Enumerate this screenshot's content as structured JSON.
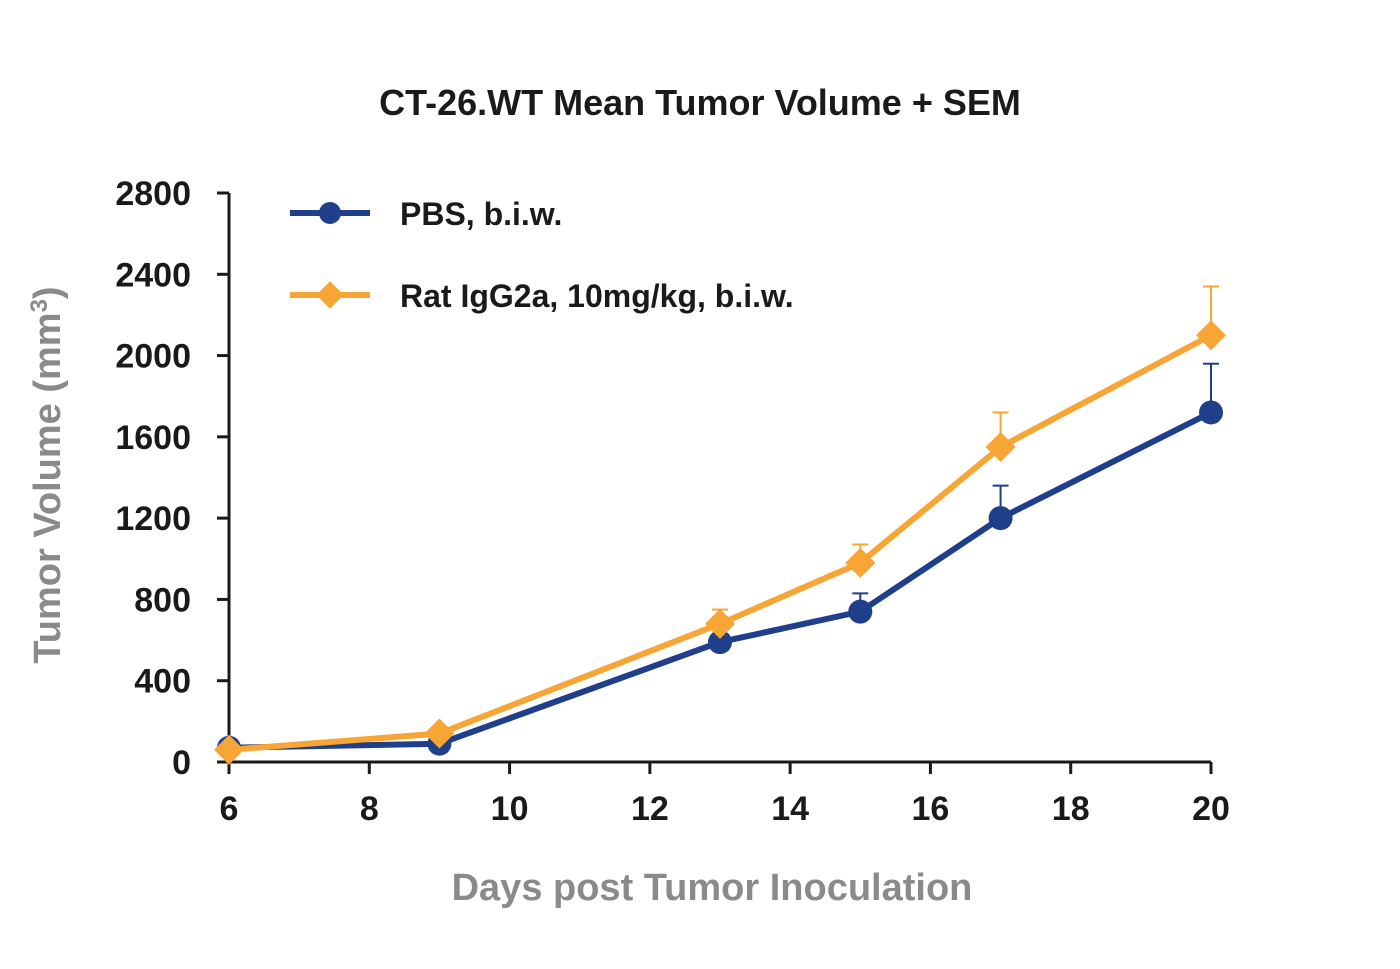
{
  "chart_data": {
    "type": "line",
    "title": "CT-26.WT Mean Tumor Volume + SEM",
    "xlabel": "Days post Tumor Inoculation",
    "ylabel": "Tumor Volume (mm",
    "ylabel_superscript": "3",
    "ylabel_close": ")",
    "xlim": [
      6,
      20
    ],
    "ylim": [
      0,
      2800
    ],
    "x_ticks": [
      "6",
      "8",
      "10",
      "12",
      "14",
      "16",
      "18",
      "20"
    ],
    "y_ticks": [
      "0",
      "400",
      "800",
      "1200",
      "1600",
      "2000",
      "2400",
      "2800"
    ],
    "grid": false,
    "legend_position": "top-left",
    "series": [
      {
        "name": "PBS, b.i.w.",
        "color": "#1f3f8a",
        "marker": "circle",
        "x": [
          6,
          9,
          13,
          15,
          17,
          20
        ],
        "y": [
          70,
          90,
          590,
          740,
          1200,
          1720
        ],
        "sem": [
          10,
          15,
          30,
          90,
          160,
          240
        ]
      },
      {
        "name": "Rat IgG2a, 10mg/kg, b.i.w.",
        "color": "#f7a535",
        "marker": "diamond",
        "x": [
          6,
          9,
          13,
          15,
          17,
          20
        ],
        "y": [
          60,
          140,
          680,
          980,
          1550,
          2100
        ],
        "sem": [
          10,
          20,
          70,
          90,
          170,
          240
        ]
      }
    ]
  }
}
